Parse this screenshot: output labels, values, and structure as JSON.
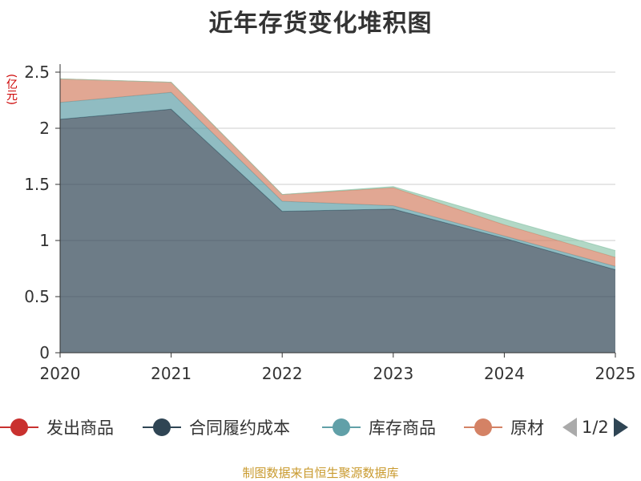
{
  "title": "近年存货变化堆积图",
  "unit_label": "(亿元)",
  "footer": "制图数据来自恒生聚源数据库",
  "legend": {
    "items": [
      {
        "label": "发出商品",
        "color": "#c9312f"
      },
      {
        "label": "合同履约成本",
        "color": "#2f4554"
      },
      {
        "label": "库存商品",
        "color": "#61a0a8"
      },
      {
        "label": "原材",
        "color": "#d48265"
      }
    ],
    "page_text": "1/2",
    "prev_icon": "arrow-left-icon",
    "next_icon": "arrow-right-icon",
    "prev_color": "#aaaaaa",
    "next_color": "#2f4554"
  },
  "chart_data": {
    "type": "area",
    "stacked": true,
    "x": [
      "2020",
      "2021",
      "2022",
      "2023",
      "2024",
      "2025"
    ],
    "y_ticks": [
      "0",
      "0.5",
      "1",
      "1.5",
      "2",
      "2.5"
    ],
    "ylim": [
      0,
      2.5
    ],
    "grid": true,
    "series": [
      {
        "name": "合同履约成本",
        "color": "#2f4554",
        "values": [
          2.08,
          2.17,
          1.26,
          1.28,
          1.02,
          0.74
        ]
      },
      {
        "name": "库存商品",
        "color": "#61a0a8",
        "values": [
          0.15,
          0.15,
          0.09,
          0.03,
          0.02,
          0.03
        ]
      },
      {
        "name": "原材",
        "color": "#d48265",
        "values": [
          0.21,
          0.09,
          0.06,
          0.16,
          0.1,
          0.08
        ]
      },
      {
        "name": "",
        "color": "#91c7ae",
        "values": [
          0,
          0,
          0,
          0.01,
          0.05,
          0.06
        ]
      }
    ]
  }
}
